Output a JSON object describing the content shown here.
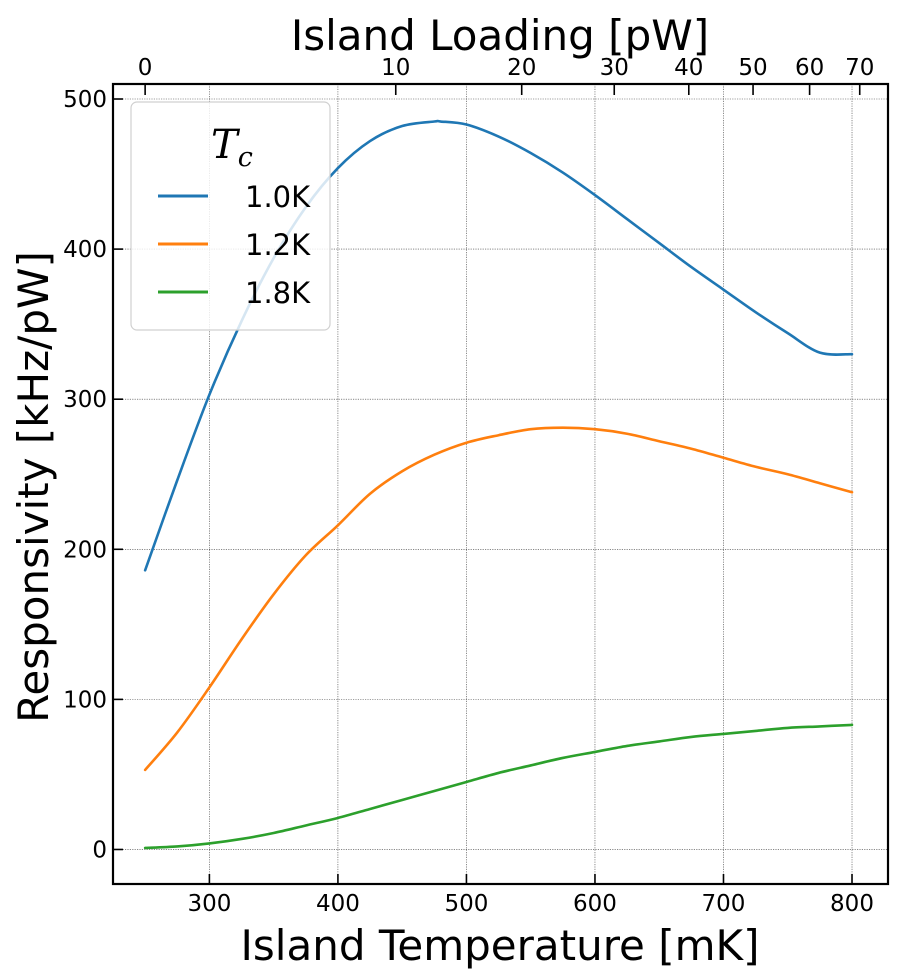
{
  "chart_data": {
    "type": "line",
    "xlabel": "Island Temperature [mK]",
    "ylabel": "Responsivity [kHz/pW]",
    "top_xlabel": "Island Loading [pW]",
    "xlim": [
      225,
      828
    ],
    "ylim": [
      -23,
      510
    ],
    "x_ticks": [
      300,
      400,
      500,
      600,
      700,
      800
    ],
    "y_ticks": [
      0,
      100,
      200,
      300,
      400,
      500
    ],
    "top_ticks": [
      {
        "label": "0",
        "temperature_mK": 250
      },
      {
        "label": "10",
        "temperature_mK": 445
      },
      {
        "label": "20",
        "temperature_mK": 543
      },
      {
        "label": "30",
        "temperature_mK": 615
      },
      {
        "label": "40",
        "temperature_mK": 673
      },
      {
        "label": "50",
        "temperature_mK": 723
      },
      {
        "label": "60",
        "temperature_mK": 767
      },
      {
        "label": "70",
        "temperature_mK": 806
      }
    ],
    "grid": true,
    "legend": {
      "title": "T",
      "title_subscript": "c",
      "position": "top-left"
    },
    "series": [
      {
        "name": "1.0K",
        "color": "#1f77b4",
        "x": [
          250,
          275,
          300,
          325,
          350,
          375,
          400,
          425,
          450,
          475,
          480,
          500,
          525,
          550,
          575,
          600,
          625,
          650,
          675,
          700,
          725,
          750,
          775,
          800
        ],
        "y": [
          186,
          246,
          303,
          352,
          394,
          428,
          454,
          472,
          482,
          485,
          485,
          483,
          475,
          464,
          451,
          436,
          420,
          404,
          388,
          373,
          358,
          344,
          331,
          330
        ]
      },
      {
        "name": "1.2K",
        "color": "#ff7f0e",
        "x": [
          250,
          275,
          300,
          325,
          350,
          375,
          400,
          425,
          450,
          475,
          500,
          525,
          550,
          575,
          600,
          625,
          650,
          675,
          700,
          725,
          750,
          775,
          800
        ],
        "y": [
          53,
          78,
          108,
          140,
          170,
          196,
          216,
          237,
          252,
          263,
          271,
          276,
          280,
          281,
          280,
          277,
          272,
          267,
          261,
          255,
          250,
          244,
          238
        ]
      },
      {
        "name": "1.8K",
        "color": "#2ca02c",
        "x": [
          250,
          275,
          300,
          325,
          350,
          375,
          400,
          425,
          450,
          475,
          500,
          525,
          550,
          575,
          600,
          625,
          650,
          675,
          700,
          725,
          750,
          775,
          800
        ],
        "y": [
          1,
          2,
          4,
          7,
          11,
          16,
          21,
          27,
          33,
          39,
          45,
          51,
          56,
          61,
          65,
          69,
          72,
          75,
          77,
          79,
          81,
          82,
          83
        ]
      }
    ]
  }
}
